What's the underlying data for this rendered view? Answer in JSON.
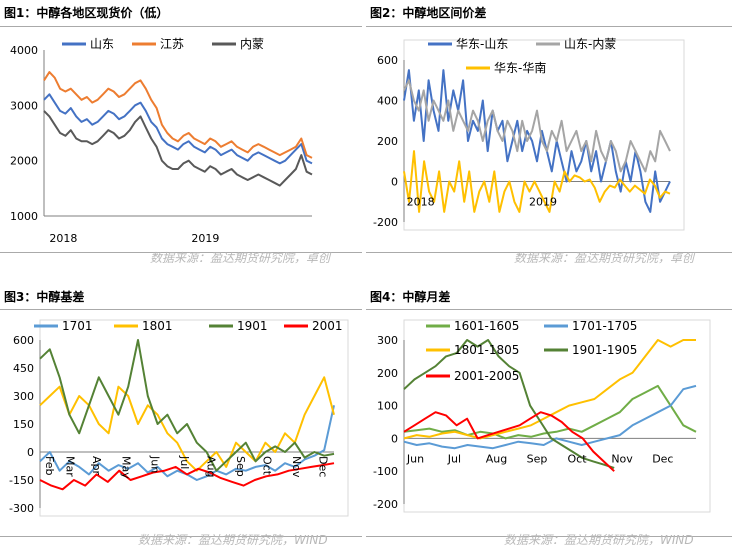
{
  "panels": [
    {
      "title": "图1：中醇各地区现货价（低）",
      "source": "数据来源：盈达期货研究院，卓创"
    },
    {
      "title": "图2：中醇地区间价差",
      "source": "数据来源：盈达期货研究院，卓创"
    },
    {
      "title": "图3：中醇基差",
      "source": "数据来源：盈达期货研究院，WIND"
    },
    {
      "title": "图4：中醇月差",
      "source": "数据来源：盈达期货研究院，WIND"
    }
  ],
  "chart_data": [
    {
      "type": "line",
      "x_labels": [
        "2018",
        "2019"
      ],
      "ylim": [
        1000,
        4000
      ],
      "yticks": [
        "1000",
        "2000",
        "3000",
        "4000"
      ],
      "legend": "top",
      "series": [
        {
          "name": "山东",
          "color": "#4472c4",
          "values": [
            3100,
            3200,
            3050,
            2900,
            2850,
            2950,
            2800,
            2700,
            2750,
            2650,
            2700,
            2800,
            2900,
            2850,
            2750,
            2800,
            2900,
            3000,
            3050,
            2900,
            2700,
            2600,
            2400,
            2300,
            2250,
            2200,
            2300,
            2350,
            2250,
            2200,
            2150,
            2250,
            2200,
            2100,
            2150,
            2200,
            2100,
            2050,
            2000,
            2100,
            2150,
            2100,
            2050,
            2000,
            1950,
            2000,
            2100,
            2200,
            2300,
            2000,
            1950
          ]
        },
        {
          "name": "江苏",
          "color": "#ed7d31",
          "values": [
            3450,
            3600,
            3500,
            3300,
            3250,
            3300,
            3200,
            3100,
            3150,
            3050,
            3100,
            3200,
            3300,
            3250,
            3150,
            3200,
            3300,
            3400,
            3450,
            3300,
            3100,
            2950,
            2650,
            2500,
            2400,
            2350,
            2450,
            2500,
            2400,
            2350,
            2300,
            2400,
            2350,
            2250,
            2300,
            2350,
            2250,
            2200,
            2150,
            2250,
            2300,
            2250,
            2200,
            2150,
            2100,
            2150,
            2200,
            2250,
            2400,
            2100,
            2050
          ]
        },
        {
          "name": "内蒙",
          "color": "#595959",
          "values": [
            2900,
            2800,
            2650,
            2500,
            2450,
            2550,
            2400,
            2350,
            2350,
            2300,
            2350,
            2450,
            2550,
            2500,
            2400,
            2450,
            2550,
            2700,
            2800,
            2600,
            2400,
            2250,
            2000,
            1900,
            1850,
            1850,
            1950,
            2000,
            1900,
            1850,
            1800,
            1900,
            1850,
            1750,
            1800,
            1850,
            1750,
            1700,
            1650,
            1700,
            1750,
            1700,
            1650,
            1600,
            1550,
            1650,
            1750,
            1850,
            2100,
            1800,
            1750
          ]
        }
      ]
    },
    {
      "type": "line",
      "x_labels": [
        "2018",
        "2019"
      ],
      "ylim": [
        -200,
        600
      ],
      "yticks": [
        "-200",
        "0",
        "200",
        "400",
        "600"
      ],
      "legend": "top",
      "series": [
        {
          "name": "华东-山东",
          "color": "#4472c4",
          "values": [
            400,
            550,
            300,
            450,
            200,
            500,
            350,
            250,
            550,
            300,
            450,
            350,
            500,
            200,
            300,
            250,
            400,
            150,
            350,
            250,
            300,
            100,
            200,
            300,
            150,
            250,
            200,
            100,
            250,
            150,
            50,
            200,
            100,
            0,
            150,
            50,
            100,
            200,
            50,
            150,
            0,
            100,
            200,
            50,
            -50,
            100,
            0,
            150,
            50,
            -100,
            -150,
            50,
            -100,
            -50,
            0
          ]
        },
        {
          "name": "山东-内蒙",
          "color": "#a5a5a5",
          "values": [
            450,
            500,
            400,
            350,
            450,
            300,
            400,
            350,
            300,
            400,
            250,
            350,
            300,
            250,
            350,
            300,
            200,
            300,
            350,
            250,
            200,
            300,
            250,
            150,
            300,
            200,
            250,
            350,
            200,
            150,
            250,
            200,
            300,
            150,
            200,
            250,
            150,
            200,
            100,
            250,
            150,
            100,
            200,
            150,
            50,
            100,
            200,
            150,
            100,
            50,
            150,
            100,
            250,
            200,
            150
          ]
        },
        {
          "name": "华东-华南",
          "color": "#ffc000",
          "values": [
            50,
            -100,
            150,
            -150,
            100,
            -50,
            -100,
            50,
            -150,
            0,
            -50,
            100,
            -100,
            50,
            -150,
            -50,
            0,
            -100,
            50,
            -150,
            -50,
            0,
            -100,
            -150,
            0,
            -50,
            0,
            -50,
            -100,
            -150,
            0,
            -50,
            50,
            0,
            30,
            20,
            0,
            10,
            -30,
            -100,
            -50,
            -20,
            -30,
            10,
            -20,
            -50,
            -20,
            -40,
            -60,
            10,
            -20,
            -80,
            -50,
            -60
          ]
        }
      ]
    },
    {
      "type": "line",
      "x_labels": [
        "Feb",
        "Mar",
        "Apr",
        "May",
        "Jun",
        "Jul",
        "Aug",
        "Sep",
        "Oct",
        "Nov",
        "Dec"
      ],
      "ylim": [
        -300,
        600
      ],
      "yticks": [
        "-300",
        "-150",
        "0",
        "150",
        "300",
        "450",
        "600"
      ],
      "legend": "top",
      "series": [
        {
          "name": "1701",
          "color": "#5b9bd5",
          "values": [
            -50,
            0,
            -100,
            -50,
            -80,
            -120,
            -60,
            -100,
            -70,
            -90,
            -60,
            -110,
            -80,
            -130,
            -100,
            -120,
            -150,
            -130,
            -100,
            -120,
            -90,
            -100,
            -80,
            -70,
            -100,
            -60,
            -80,
            -40,
            -20,
            10,
            250
          ]
        },
        {
          "name": "1801",
          "color": "#ffc000",
          "values": [
            250,
            300,
            350,
            200,
            300,
            250,
            150,
            100,
            350,
            300,
            150,
            250,
            200,
            100,
            50,
            -50,
            -100,
            -50,
            0,
            -80,
            50,
            0,
            -50,
            50,
            0,
            100,
            50,
            200,
            300,
            400,
            200
          ]
        },
        {
          "name": "1901",
          "color": "#548235",
          "values": [
            500,
            550,
            400,
            200,
            100,
            250,
            400,
            300,
            200,
            350,
            600,
            300,
            150,
            200,
            100,
            150,
            50,
            0,
            -100,
            -50,
            0,
            50,
            -50,
            0,
            30,
            0,
            50,
            -30,
            0,
            -20,
            -10
          ]
        },
        {
          "name": "2001",
          "color": "#ff0000",
          "values": [
            -150,
            -180,
            -200,
            -150,
            -180,
            -120,
            -160,
            -100,
            -150,
            -130,
            -110,
            -100,
            -80,
            -120,
            -90,
            -110,
            -140,
            -160,
            -180,
            -150,
            -130,
            -120,
            -100,
            -90,
            -80,
            -70,
            -60
          ]
        }
      ]
    },
    {
      "type": "line",
      "x_labels": [
        "Jun",
        "Jul",
        "Aug",
        "Sep",
        "Oct",
        "Nov",
        "Dec"
      ],
      "ylim": [
        -200,
        300
      ],
      "yticks": [
        "-200",
        "-100",
        "0",
        "100",
        "200",
        "300"
      ],
      "legend": "top",
      "series": [
        {
          "name": "1601-1605",
          "color": "#70ad47",
          "values": [
            20,
            25,
            30,
            20,
            25,
            10,
            20,
            15,
            0,
            10,
            5,
            15,
            20,
            30,
            20,
            40,
            60,
            80,
            120,
            140,
            160,
            100,
            40,
            20
          ]
        },
        {
          "name": "1701-1705",
          "color": "#5b9bd5",
          "values": [
            -10,
            -20,
            -15,
            -25,
            -30,
            -20,
            -25,
            -30,
            -20,
            -10,
            -15,
            -20,
            0,
            -10,
            -20,
            -10,
            0,
            10,
            40,
            60,
            80,
            100,
            150,
            160
          ]
        },
        {
          "name": "1801-1805",
          "color": "#ffc000",
          "values": [
            0,
            10,
            5,
            15,
            20,
            10,
            0,
            10,
            20,
            30,
            40,
            60,
            80,
            100,
            110,
            120,
            150,
            180,
            200,
            250,
            300,
            280,
            310,
            300
          ]
        },
        {
          "name": "1901-1905",
          "color": "#548235",
          "values": [
            150,
            180,
            200,
            220,
            250,
            260,
            300,
            280,
            300,
            250,
            220,
            200,
            100,
            50,
            0,
            -20,
            -40,
            -60,
            -70,
            -80,
            -90
          ]
        },
        {
          "name": "2001-2005",
          "color": "#ff0000",
          "values": [
            20,
            40,
            60,
            80,
            70,
            40,
            60,
            0,
            10,
            20,
            30,
            40,
            60,
            80,
            70,
            50,
            20,
            0,
            -40,
            -70,
            -100
          ]
        }
      ]
    }
  ]
}
